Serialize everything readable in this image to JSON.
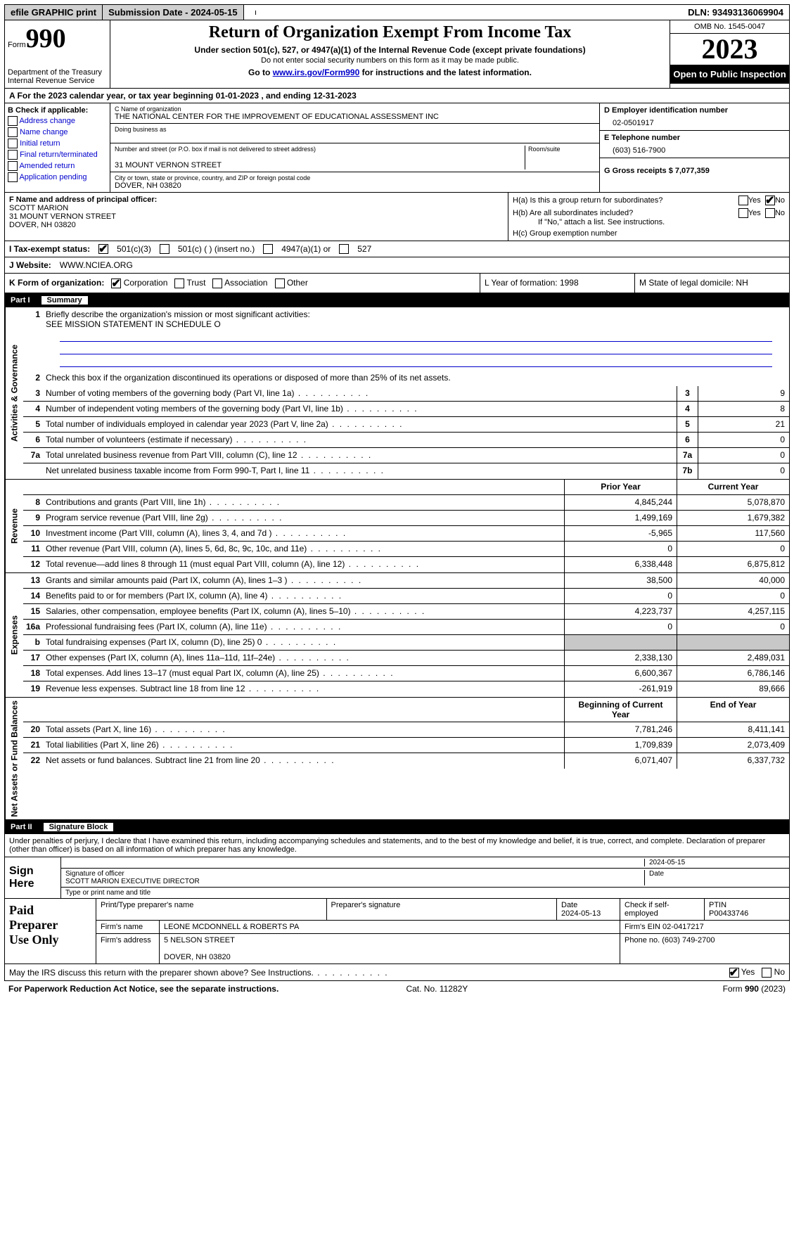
{
  "topbar": {
    "efile": "efile GRAPHIC print",
    "submission": "Submission Date - 2024-05-15",
    "dln": "DLN: 93493136069904"
  },
  "header": {
    "form_label": "Form",
    "form_num": "990",
    "dept": "Department of the Treasury Internal Revenue Service",
    "title": "Return of Organization Exempt From Income Tax",
    "sub": "Under section 501(c), 527, or 4947(a)(1) of the Internal Revenue Code (except private foundations)",
    "sub2": "Do not enter social security numbers on this form as it may be made public.",
    "goto_pre": "Go to ",
    "goto_link": "www.irs.gov/Form990",
    "goto_post": " for instructions and the latest information.",
    "omb": "OMB No. 1545-0047",
    "year": "2023",
    "open": "Open to Public Inspection"
  },
  "line_a": "A  For the 2023 calendar year, or tax year beginning 01-01-2023    , and ending 12-31-2023",
  "col_b": {
    "title": "B Check if applicable:",
    "items": [
      "Address change",
      "Name change",
      "Initial return",
      "Final return/terminated",
      "Amended return",
      "Application pending"
    ]
  },
  "col_c": {
    "name_lbl": "C Name of organization",
    "name_val": "THE NATIONAL CENTER FOR THE IMPROVEMENT OF EDUCATIONAL ASSESSMENT INC",
    "dba_lbl": "Doing business as",
    "dba_val": "",
    "addr_lbl": "Number and street (or P.O. box if mail is not delivered to street address)",
    "addr_val": "31 MOUNT VERNON STREET",
    "room_lbl": "Room/suite",
    "city_lbl": "City or town, state or province, country, and ZIP or foreign postal code",
    "city_val": "DOVER, NH  03820"
  },
  "col_de": {
    "d_lbl": "D Employer identification number",
    "d_val": "02-0501917",
    "e_lbl": "E Telephone number",
    "e_val": "(603) 516-7900",
    "g_lbl": "G Gross receipts $ 7,077,359"
  },
  "col_f": {
    "lbl": "F  Name and address of principal officer:",
    "name": "SCOTT MARION",
    "addr1": "31 MOUNT VERNON STREET",
    "addr2": "DOVER, NH  03820"
  },
  "col_h": {
    "ha": "H(a)  Is this a group return for subordinates?",
    "hb": "H(b)  Are all subordinates included?",
    "hb_note": "If \"No,\" attach a list. See instructions.",
    "hc": "H(c)  Group exemption number"
  },
  "row_i": {
    "lbl": "I     Tax-exempt status:",
    "o1": "501(c)(3)",
    "o2": "501(c) (  ) (insert no.)",
    "o3": "4947(a)(1) or",
    "o4": "527"
  },
  "row_j": {
    "lbl": "J     Website:",
    "val": "WWW.NCIEA.ORG"
  },
  "row_k": {
    "lbl": "K Form of organization:",
    "o1": "Corporation",
    "o2": "Trust",
    "o3": "Association",
    "o4": "Other"
  },
  "row_l": "L Year of formation: 1998",
  "row_m": "M State of legal domicile: NH",
  "parts": {
    "p1": "Part I",
    "p1t": "Summary",
    "p2": "Part II",
    "p2t": "Signature Block"
  },
  "vtabs": {
    "gov": "Activities & Governance",
    "rev": "Revenue",
    "exp": "Expenses",
    "net": "Net Assets or Fund Balances"
  },
  "summary": {
    "l1_lbl": "Briefly describe the organization's mission or most significant activities:",
    "l1_val": "SEE MISSION STATEMENT IN SCHEDULE O",
    "l2": "Check this box        if the organization discontinued its operations or disposed of more than 25% of its net assets.",
    "rows_gov": [
      {
        "n": "3",
        "d": "Number of voting members of the governing body (Part VI, line 1a)",
        "bn": "3",
        "bv": "9"
      },
      {
        "n": "4",
        "d": "Number of independent voting members of the governing body (Part VI, line 1b)",
        "bn": "4",
        "bv": "8"
      },
      {
        "n": "5",
        "d": "Total number of individuals employed in calendar year 2023 (Part V, line 2a)",
        "bn": "5",
        "bv": "21"
      },
      {
        "n": "6",
        "d": "Total number of volunteers (estimate if necessary)",
        "bn": "6",
        "bv": "0"
      },
      {
        "n": "7a",
        "d": "Total unrelated business revenue from Part VIII, column (C), line 12",
        "bn": "7a",
        "bv": "0"
      },
      {
        "n": "",
        "d": "Net unrelated business taxable income from Form 990-T, Part I, line 11",
        "bn": "7b",
        "bv": "0"
      }
    ],
    "hdr_py": "Prior Year",
    "hdr_cy": "Current Year",
    "rows_rev": [
      {
        "n": "8",
        "d": "Contributions and grants (Part VIII, line 1h)",
        "py": "4,845,244",
        "cy": "5,078,870"
      },
      {
        "n": "9",
        "d": "Program service revenue (Part VIII, line 2g)",
        "py": "1,499,169",
        "cy": "1,679,382"
      },
      {
        "n": "10",
        "d": "Investment income (Part VIII, column (A), lines 3, 4, and 7d )",
        "py": "-5,965",
        "cy": "117,560"
      },
      {
        "n": "11",
        "d": "Other revenue (Part VIII, column (A), lines 5, 6d, 8c, 9c, 10c, and 11e)",
        "py": "0",
        "cy": "0"
      },
      {
        "n": "12",
        "d": "Total revenue—add lines 8 through 11 (must equal Part VIII, column (A), line 12)",
        "py": "6,338,448",
        "cy": "6,875,812"
      }
    ],
    "rows_exp": [
      {
        "n": "13",
        "d": "Grants and similar amounts paid (Part IX, column (A), lines 1–3 )",
        "py": "38,500",
        "cy": "40,000"
      },
      {
        "n": "14",
        "d": "Benefits paid to or for members (Part IX, column (A), line 4)",
        "py": "0",
        "cy": "0"
      },
      {
        "n": "15",
        "d": "Salaries, other compensation, employee benefits (Part IX, column (A), lines 5–10)",
        "py": "4,223,737",
        "cy": "4,257,115"
      },
      {
        "n": "16a",
        "d": "Professional fundraising fees (Part IX, column (A), line 11e)",
        "py": "0",
        "cy": "0"
      },
      {
        "n": "b",
        "d": "Total fundraising expenses (Part IX, column (D), line 25) 0",
        "py": "",
        "cy": "",
        "grey": true
      },
      {
        "n": "17",
        "d": "Other expenses (Part IX, column (A), lines 11a–11d, 11f–24e)",
        "py": "2,338,130",
        "cy": "2,489,031"
      },
      {
        "n": "18",
        "d": "Total expenses. Add lines 13–17 (must equal Part IX, column (A), line 25)",
        "py": "6,600,367",
        "cy": "6,786,146"
      },
      {
        "n": "19",
        "d": "Revenue less expenses. Subtract line 18 from line 12",
        "py": "-261,919",
        "cy": "89,666"
      }
    ],
    "hdr_bcy": "Beginning of Current Year",
    "hdr_eoy": "End of Year",
    "rows_net": [
      {
        "n": "20",
        "d": "Total assets (Part X, line 16)",
        "py": "7,781,246",
        "cy": "8,411,141"
      },
      {
        "n": "21",
        "d": "Total liabilities (Part X, line 26)",
        "py": "1,709,839",
        "cy": "2,073,409"
      },
      {
        "n": "22",
        "d": "Net assets or fund balances. Subtract line 21 from line 20",
        "py": "6,071,407",
        "cy": "6,337,732"
      }
    ]
  },
  "declare": "Under penalties of perjury, I declare that I have examined this return, including accompanying schedules and statements, and to the best of my knowledge and belief, it is true, correct, and complete. Declaration of preparer (other than officer) is based on all information of which preparer has any knowledge.",
  "sign": {
    "left1": "Sign",
    "left2": "Here",
    "date": "2024-05-15",
    "sig_lbl": "Signature of officer",
    "date_lbl": "Date",
    "name": "SCOTT MARION  EXECUTIVE DIRECTOR",
    "name_lbl": "Type or print name and title"
  },
  "prep": {
    "left1": "Paid",
    "left2": "Preparer",
    "left3": "Use Only",
    "h1": "Print/Type preparer's name",
    "h2": "Preparer's signature",
    "h3": "Date",
    "h3v": "2024-05-13",
    "h4": "Check        if self-employed",
    "h5": "PTIN",
    "h5v": "P00433746",
    "firm_lbl": "Firm's name",
    "firm_val": "LEONE MCDONNELL & ROBERTS PA",
    "ein_lbl": "Firm's EIN",
    "ein_val": "02-0417217",
    "addr_lbl": "Firm's address",
    "addr_val": "5 NELSON STREET",
    "addr_val2": "DOVER, NH  03820",
    "phone_lbl": "Phone no.",
    "phone_val": "(603) 749-2700"
  },
  "discuss": "May the IRS discuss this return with the preparer shown above? See Instructions.",
  "footer": {
    "left": "For Paperwork Reduction Act Notice, see the separate instructions.",
    "mid": "Cat. No. 11282Y",
    "right_pre": "Form ",
    "right_b": "990",
    "right_post": " (2023)"
  },
  "yn": {
    "yes": "Yes",
    "no": "No"
  }
}
